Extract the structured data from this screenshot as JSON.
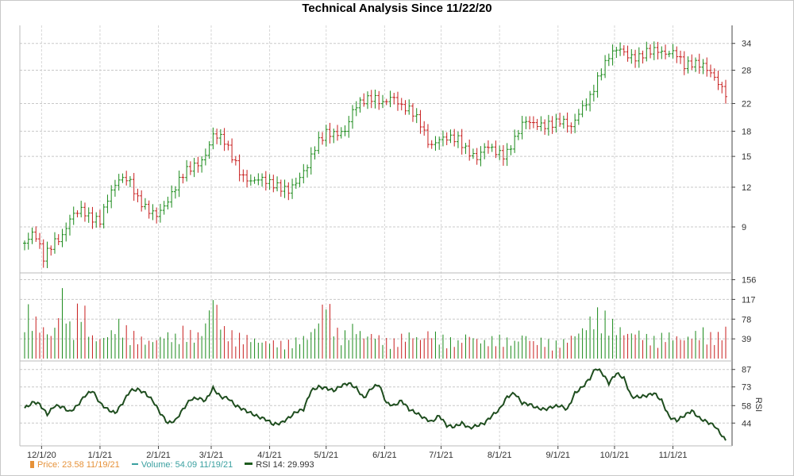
{
  "title": "Technical Analysis Since 11/22/20",
  "chart_data": {
    "type": "line",
    "title": "Technical Analysis Since 11/22/20",
    "x_tick_labels": [
      "12/1/20",
      "1/1/21",
      "2/1/21",
      "3/1/21",
      "4/1/21",
      "5/1/21",
      "6/1/21",
      "7/1/21",
      "8/1/21",
      "9/1/21",
      "10/1/21",
      "11/1/21"
    ],
    "price_panel": {
      "y_ticks": [
        "34",
        "28",
        "22",
        "18",
        "15",
        "12",
        "9"
      ],
      "series": [
        {
          "name": "Price",
          "type": "ohlc",
          "points": [
            [
              0,
              8.0
            ],
            [
              5,
              8.7
            ],
            [
              10,
              7.2
            ],
            [
              15,
              8.0
            ],
            [
              20,
              8.4
            ],
            [
              25,
              9.8
            ],
            [
              30,
              10.2
            ],
            [
              35,
              9.6
            ],
            [
              40,
              9.4
            ],
            [
              45,
              11.4
            ],
            [
              50,
              12.7
            ],
            [
              55,
              12.8
            ],
            [
              60,
              11.0
            ],
            [
              65,
              10.2
            ],
            [
              70,
              9.8
            ],
            [
              75,
              10.6
            ],
            [
              80,
              12.0
            ],
            [
              85,
              13.5
            ],
            [
              90,
              14.0
            ],
            [
              95,
              14.6
            ],
            [
              100,
              17.5
            ],
            [
              105,
              17.2
            ],
            [
              110,
              15.0
            ],
            [
              115,
              13.0
            ],
            [
              120,
              12.5
            ],
            [
              125,
              12.8
            ],
            [
              130,
              12.4
            ],
            [
              135,
              12.0
            ],
            [
              140,
              11.7
            ],
            [
              145,
              12.6
            ],
            [
              150,
              14.0
            ],
            [
              155,
              16.5
            ],
            [
              160,
              17.8
            ],
            [
              165,
              17.6
            ],
            [
              170,
              18.0
            ],
            [
              175,
              21.5
            ],
            [
              180,
              22.5
            ],
            [
              185,
              23.0
            ],
            [
              190,
              22.0
            ],
            [
              195,
              23.2
            ],
            [
              200,
              21.5
            ],
            [
              205,
              21.0
            ],
            [
              210,
              19.0
            ],
            [
              215,
              16.0
            ],
            [
              220,
              17.0
            ],
            [
              225,
              17.2
            ],
            [
              230,
              17.0
            ],
            [
              235,
              15.5
            ],
            [
              240,
              14.8
            ],
            [
              245,
              16.3
            ],
            [
              250,
              15.5
            ],
            [
              255,
              15.0
            ],
            [
              260,
              17.0
            ],
            [
              265,
              19.5
            ],
            [
              270,
              19.0
            ],
            [
              275,
              18.7
            ],
            [
              280,
              19.0
            ],
            [
              285,
              19.5
            ],
            [
              290,
              18.5
            ],
            [
              295,
              21.0
            ],
            [
              300,
              23.0
            ],
            [
              305,
              27.0
            ],
            [
              310,
              31.0
            ],
            [
              315,
              33.0
            ],
            [
              320,
              31.0
            ],
            [
              325,
              30.5
            ],
            [
              330,
              32.0
            ],
            [
              335,
              32.5
            ],
            [
              340,
              31.5
            ],
            [
              345,
              32.0
            ],
            [
              350,
              29.0
            ],
            [
              355,
              29.5
            ],
            [
              360,
              29.0
            ],
            [
              365,
              27.0
            ],
            [
              370,
              24.5
            ],
            [
              372,
              23.6
            ]
          ]
        }
      ]
    },
    "volume_panel": {
      "y_ticks": [
        "156",
        "117",
        "78",
        "39"
      ],
      "series": [
        {
          "name": "Volume",
          "type": "bar",
          "points": [
            [
              0,
              95
            ],
            [
              8,
              60
            ],
            [
              15,
              40
            ],
            [
              20,
              118
            ],
            [
              25,
              45
            ],
            [
              30,
              115
            ],
            [
              35,
              40
            ],
            [
              40,
              35
            ],
            [
              45,
              45
            ],
            [
              50,
              65
            ],
            [
              55,
              50
            ],
            [
              60,
              40
            ],
            [
              65,
              30
            ],
            [
              70,
              35
            ],
            [
              75,
              45
            ],
            [
              80,
              40
            ],
            [
              85,
              55
            ],
            [
              90,
              40
            ],
            [
              95,
              50
            ],
            [
              100,
              118
            ],
            [
              105,
              55
            ],
            [
              110,
              45
            ],
            [
              115,
              40
            ],
            [
              120,
              38
            ],
            [
              125,
              30
            ],
            [
              130,
              32
            ],
            [
              135,
              28
            ],
            [
              140,
              30
            ],
            [
              145,
              35
            ],
            [
              150,
              40
            ],
            [
              155,
              60
            ],
            [
              160,
              115
            ],
            [
              165,
              50
            ],
            [
              170,
              45
            ],
            [
              175,
              60
            ],
            [
              180,
              40
            ],
            [
              185,
              45
            ],
            [
              190,
              35
            ],
            [
              195,
              30
            ],
            [
              200,
              40
            ],
            [
              205,
              45
            ],
            [
              210,
              35
            ],
            [
              215,
              50
            ],
            [
              220,
              40
            ],
            [
              225,
              35
            ],
            [
              230,
              30
            ],
            [
              235,
              45
            ],
            [
              240,
              35
            ],
            [
              245,
              30
            ],
            [
              250,
              40
            ],
            [
              255,
              35
            ],
            [
              260,
              30
            ],
            [
              265,
              45
            ],
            [
              270,
              30
            ],
            [
              275,
              35
            ],
            [
              280,
              28
            ],
            [
              285,
              30
            ],
            [
              290,
              40
            ],
            [
              295,
              50
            ],
            [
              300,
              70
            ],
            [
              305,
              85
            ],
            [
              310,
              70
            ],
            [
              315,
              55
            ],
            [
              320,
              45
            ],
            [
              325,
              50
            ],
            [
              330,
              40
            ],
            [
              335,
              35
            ],
            [
              340,
              45
            ],
            [
              345,
              40
            ],
            [
              350,
              35
            ],
            [
              355,
              45
            ],
            [
              360,
              50
            ],
            [
              365,
              40
            ],
            [
              370,
              45
            ],
            [
              372,
              54
            ]
          ]
        }
      ]
    },
    "rsi_panel": {
      "y_label": "RSI",
      "y_ticks": [
        "87",
        "73",
        "58",
        "44"
      ],
      "series": [
        {
          "name": "RSI 14",
          "type": "line",
          "points": [
            [
              0,
              56
            ],
            [
              5,
              61
            ],
            [
              8,
              59
            ],
            [
              12,
              51
            ],
            [
              16,
              58
            ],
            [
              20,
              57
            ],
            [
              24,
              53
            ],
            [
              28,
              58
            ],
            [
              32,
              66
            ],
            [
              36,
              70
            ],
            [
              40,
              60
            ],
            [
              44,
              55
            ],
            [
              48,
              52
            ],
            [
              52,
              60
            ],
            [
              56,
              70
            ],
            [
              60,
              71
            ],
            [
              64,
              68
            ],
            [
              68,
              62
            ],
            [
              72,
              52
            ],
            [
              76,
              44
            ],
            [
              80,
              46
            ],
            [
              84,
              55
            ],
            [
              88,
              63
            ],
            [
              92,
              64
            ],
            [
              96,
              62
            ],
            [
              100,
              72
            ],
            [
              104,
              65
            ],
            [
              108,
              64
            ],
            [
              112,
              58
            ],
            [
              116,
              55
            ],
            [
              120,
              52
            ],
            [
              124,
              49
            ],
            [
              128,
              47
            ],
            [
              132,
              43
            ],
            [
              136,
              44
            ],
            [
              140,
              48
            ],
            [
              144,
              53
            ],
            [
              148,
              55
            ],
            [
              152,
              70
            ],
            [
              156,
              73
            ],
            [
              160,
              72
            ],
            [
              164,
              70
            ],
            [
              168,
              74
            ],
            [
              172,
              76
            ],
            [
              176,
              72
            ],
            [
              180,
              64
            ],
            [
              184,
              72
            ],
            [
              188,
              75
            ],
            [
              192,
              60
            ],
            [
              196,
              58
            ],
            [
              200,
              62
            ],
            [
              204,
              55
            ],
            [
              208,
              52
            ],
            [
              212,
              48
            ],
            [
              216,
              45
            ],
            [
              220,
              50
            ],
            [
              224,
              42
            ],
            [
              228,
              41
            ],
            [
              232,
              44
            ],
            [
              236,
              40
            ],
            [
              240,
              42
            ],
            [
              244,
              44
            ],
            [
              248,
              50
            ],
            [
              252,
              55
            ],
            [
              256,
              65
            ],
            [
              260,
              68
            ],
            [
              264,
              60
            ],
            [
              268,
              59
            ],
            [
              272,
              56
            ],
            [
              276,
              55
            ],
            [
              280,
              57
            ],
            [
              284,
              58
            ],
            [
              288,
              55
            ],
            [
              292,
              68
            ],
            [
              296,
              73
            ],
            [
              300,
              80
            ],
            [
              303,
              88
            ],
            [
              306,
              85
            ],
            [
              310,
              76
            ],
            [
              314,
              84
            ],
            [
              318,
              80
            ],
            [
              322,
              65
            ],
            [
              326,
              65
            ],
            [
              330,
              66
            ],
            [
              334,
              68
            ],
            [
              338,
              62
            ],
            [
              342,
              49
            ],
            [
              346,
              46
            ],
            [
              350,
              50
            ],
            [
              354,
              54
            ],
            [
              358,
              48
            ],
            [
              362,
              45
            ],
            [
              366,
              42
            ],
            [
              370,
              34
            ],
            [
              372,
              30
            ]
          ]
        }
      ]
    }
  },
  "legend": {
    "price": "Price: 23.58  11/19/21",
    "volume": "Volume: 54.09  11/19/21",
    "rsi": "RSI 14: 29.993"
  }
}
